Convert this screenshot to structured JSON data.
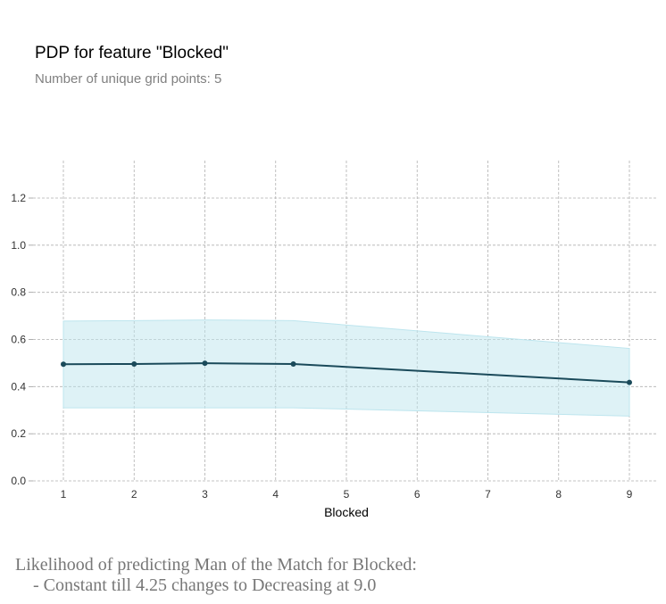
{
  "title": "PDP for feature \"Blocked\"",
  "subtitle": "Number of unique grid points: 5",
  "caption_lines": [
    "Likelihood of predicting Man of the Match for Blocked:",
    "    - Constant till 4.25 changes to Decreasing at 9.0"
  ],
  "colors": {
    "line": "#1a4a5a",
    "band": "#bde5ee",
    "grid": "#b0b0b0"
  },
  "chart_data": {
    "type": "line",
    "title": "PDP for feature \"Blocked\"",
    "subtitle": "Number of unique grid points: 5",
    "xlabel": "Blocked",
    "ylabel": "",
    "xlim": [
      0.95,
      9.05
    ],
    "ylim": [
      0,
      1.35
    ],
    "x_ticks": [
      1,
      2,
      3,
      4,
      5,
      6,
      7,
      8,
      9
    ],
    "y_ticks": [
      0.0,
      0.2,
      0.4,
      0.6,
      0.8,
      1.0,
      1.2
    ],
    "y_tick_labels": [
      "0.0",
      "0.2",
      "0.4",
      "0.6",
      "0.8",
      "1.0",
      "1.2"
    ],
    "grid": true,
    "series": [
      {
        "x": [
          1,
          2,
          3,
          4.25,
          9
        ],
        "values": [
          0.495,
          0.496,
          0.499,
          0.496,
          0.418
        ],
        "lower": [
          0.31,
          0.31,
          0.31,
          0.31,
          0.275
        ],
        "upper": [
          0.678,
          0.68,
          0.683,
          0.68,
          0.562
        ]
      }
    ]
  }
}
